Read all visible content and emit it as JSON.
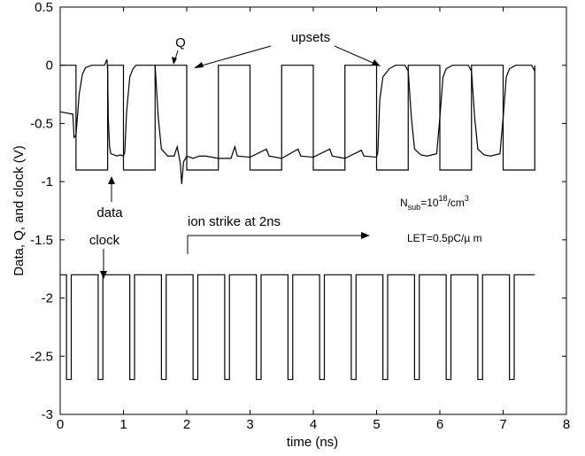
{
  "chart_data": {
    "type": "line",
    "title": "",
    "xlabel": "time (ns)",
    "ylabel": "Data, Q, and clock (V)",
    "xlim": [
      0,
      8
    ],
    "ylim": [
      -3,
      0.5
    ],
    "xticks": [
      "0",
      "1",
      "2",
      "3",
      "4",
      "5",
      "6",
      "7",
      "8"
    ],
    "yticks": [
      "0.5",
      "0",
      "-0.5",
      "-1",
      "-1.5",
      "-2",
      "-2.5",
      "-3"
    ],
    "grid": false,
    "series": [
      {
        "role": "data",
        "x": [
          0.0,
          0.25,
          0.25,
          0.75,
          0.75,
          1.0,
          1.0,
          1.5,
          1.5,
          2.0,
          2.0,
          2.5,
          2.5,
          3.0,
          3.0,
          3.5,
          3.5,
          4.0,
          4.0,
          4.5,
          4.5,
          5.0,
          5.0,
          5.5,
          5.5,
          6.0,
          6.0,
          6.5,
          6.5,
          7.0,
          7.0,
          7.5,
          7.5
        ],
        "y": [
          0.0,
          0.0,
          -0.9,
          -0.9,
          0.0,
          0.0,
          -0.9,
          -0.9,
          0.0,
          0.0,
          -0.9,
          -0.9,
          0.0,
          0.0,
          -0.9,
          -0.9,
          0.0,
          0.0,
          -0.9,
          -0.9,
          0.0,
          0.0,
          -0.9,
          -0.9,
          0.0,
          0.0,
          -0.9,
          -0.9,
          0.0,
          0.0,
          -0.9,
          -0.9,
          0.0
        ]
      },
      {
        "role": "Q",
        "x": [
          0.0,
          0.2,
          0.22,
          0.25,
          0.3,
          0.35,
          0.4,
          0.5,
          0.6,
          0.7,
          0.74,
          0.75,
          0.76,
          0.78,
          0.8,
          0.9,
          0.95,
          1.0,
          1.02,
          1.05,
          1.1,
          1.15,
          1.2,
          1.3,
          1.4,
          1.5,
          1.55,
          1.6,
          1.7,
          1.8,
          1.85,
          1.9,
          1.92,
          1.95,
          2.0,
          2.1,
          2.2,
          2.3,
          2.5,
          2.7,
          2.76,
          2.8,
          3.0,
          3.26,
          3.3,
          3.5,
          3.76,
          3.8,
          4.0,
          4.26,
          4.3,
          4.5,
          4.76,
          4.8,
          5.0,
          5.02,
          5.05,
          5.1,
          5.2,
          5.3,
          5.45,
          5.5,
          5.55,
          5.6,
          5.7,
          5.8,
          5.95,
          6.0,
          6.05,
          6.1,
          6.2,
          6.3,
          6.45,
          6.5,
          6.55,
          6.6,
          6.7,
          6.8,
          6.95,
          7.0,
          7.05,
          7.1,
          7.2,
          7.3,
          7.45,
          7.5
        ],
        "y": [
          -0.4,
          -0.42,
          -0.62,
          -0.6,
          -0.25,
          -0.08,
          -0.02,
          0.0,
          0.0,
          0.0,
          0.05,
          -0.05,
          -0.45,
          -0.7,
          -0.76,
          -0.78,
          -0.77,
          -0.78,
          -0.75,
          -0.4,
          -0.1,
          -0.03,
          0.0,
          0.0,
          0.0,
          0.0,
          -0.45,
          -0.72,
          -0.78,
          -0.78,
          -0.7,
          -0.85,
          -1.02,
          -0.83,
          -0.78,
          -0.8,
          -0.78,
          -0.78,
          -0.8,
          -0.8,
          -0.7,
          -0.78,
          -0.79,
          -0.72,
          -0.78,
          -0.8,
          -0.72,
          -0.78,
          -0.79,
          -0.72,
          -0.78,
          -0.8,
          -0.73,
          -0.78,
          -0.79,
          -0.75,
          -0.3,
          -0.1,
          -0.03,
          0.0,
          0.0,
          -0.05,
          -0.45,
          -0.72,
          -0.77,
          -0.78,
          -0.76,
          -0.45,
          -0.1,
          -0.03,
          0.0,
          0.0,
          0.0,
          -0.05,
          -0.45,
          -0.72,
          -0.77,
          -0.78,
          -0.76,
          -0.45,
          -0.1,
          -0.03,
          0.0,
          0.0,
          0.0,
          -0.05
        ]
      },
      {
        "role": "clock",
        "period": 0.5,
        "high": -1.8,
        "low": -2.7,
        "start": 0.0,
        "end": 7.5
      }
    ],
    "annotations": {
      "upsets": "upsets",
      "q": "Q",
      "data": "data",
      "clock": "clock",
      "ion_strike": "ion strike at 2ns",
      "nsub_base": "N",
      "nsub_sub": "sub",
      "nsub_eq": "=10",
      "nsub_exp": "18",
      "nsub_unit": "/cm",
      "nsub_unit_exp": "3",
      "let": "LET=0.5pC/µ m"
    }
  }
}
